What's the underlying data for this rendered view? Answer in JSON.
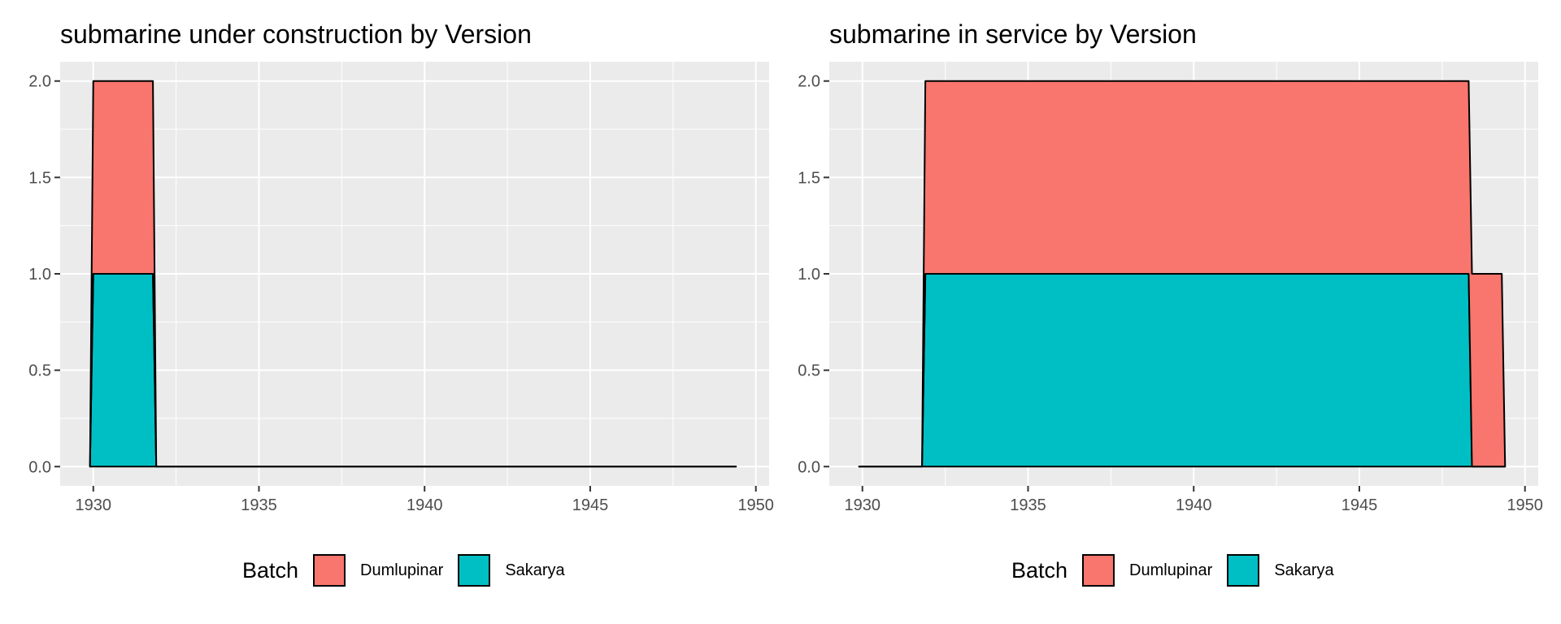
{
  "colors": {
    "Dumlupinar": "#F8766D",
    "Sakarya": "#00BFC4",
    "panel_bg": "#EBEBEB",
    "grid": "#FFFFFF",
    "outline": "#000000",
    "tick_text": "#4D4D4D"
  },
  "chart_data": [
    {
      "type": "area",
      "stacked": true,
      "title": "submarine under construction by Version",
      "xlabel": "",
      "ylabel": "",
      "xlim": [
        1929.0,
        1950.4
      ],
      "ylim": [
        -0.1,
        2.1
      ],
      "grid": true,
      "x_ticks": [
        1930,
        1935,
        1940,
        1945,
        1950
      ],
      "y_ticks": [
        0.0,
        0.5,
        1.0,
        1.5,
        2.0
      ],
      "x_tick_labels": [
        "1930",
        "1935",
        "1940",
        "1945",
        "1950"
      ],
      "y_tick_labels": [
        "0.0",
        "0.5",
        "1.0",
        "1.5",
        "2.0"
      ],
      "legend": {
        "title": "Batch",
        "position": "bottom",
        "entries": [
          "Dumlupinar",
          "Sakarya"
        ]
      },
      "series": [
        {
          "name": "Sakarya",
          "points": [
            [
              1929.9,
              0
            ],
            [
              1930.0,
              1
            ],
            [
              1931.8,
              1
            ],
            [
              1931.9,
              0
            ],
            [
              1949.4,
              0
            ]
          ]
        },
        {
          "name": "Dumlupinar",
          "points": [
            [
              1929.9,
              0
            ],
            [
              1930.0,
              1
            ],
            [
              1931.8,
              1
            ],
            [
              1931.9,
              0
            ],
            [
              1949.4,
              0
            ]
          ]
        }
      ]
    },
    {
      "type": "area",
      "stacked": true,
      "title": "submarine in service by Version",
      "xlabel": "",
      "ylabel": "",
      "xlim": [
        1929.0,
        1950.4
      ],
      "ylim": [
        -0.1,
        2.1
      ],
      "grid": true,
      "x_ticks": [
        1930,
        1935,
        1940,
        1945,
        1950
      ],
      "y_ticks": [
        0.0,
        0.5,
        1.0,
        1.5,
        2.0
      ],
      "x_tick_labels": [
        "1930",
        "1935",
        "1940",
        "1945",
        "1950"
      ],
      "y_tick_labels": [
        "0.0",
        "0.5",
        "1.0",
        "1.5",
        "2.0"
      ],
      "legend": {
        "title": "Batch",
        "position": "bottom",
        "entries": [
          "Dumlupinar",
          "Sakarya"
        ]
      },
      "series": [
        {
          "name": "Sakarya",
          "points": [
            [
              1929.9,
              0
            ],
            [
              1931.8,
              0
            ],
            [
              1931.9,
              1
            ],
            [
              1948.3,
              1
            ],
            [
              1948.4,
              0
            ],
            [
              1949.4,
              0
            ]
          ]
        },
        {
          "name": "Dumlupinar",
          "points": [
            [
              1929.9,
              0
            ],
            [
              1931.8,
              0
            ],
            [
              1931.9,
              1
            ],
            [
              1948.3,
              1
            ],
            [
              1948.4,
              1
            ],
            [
              1949.3,
              1
            ],
            [
              1949.4,
              0
            ]
          ]
        }
      ]
    }
  ]
}
